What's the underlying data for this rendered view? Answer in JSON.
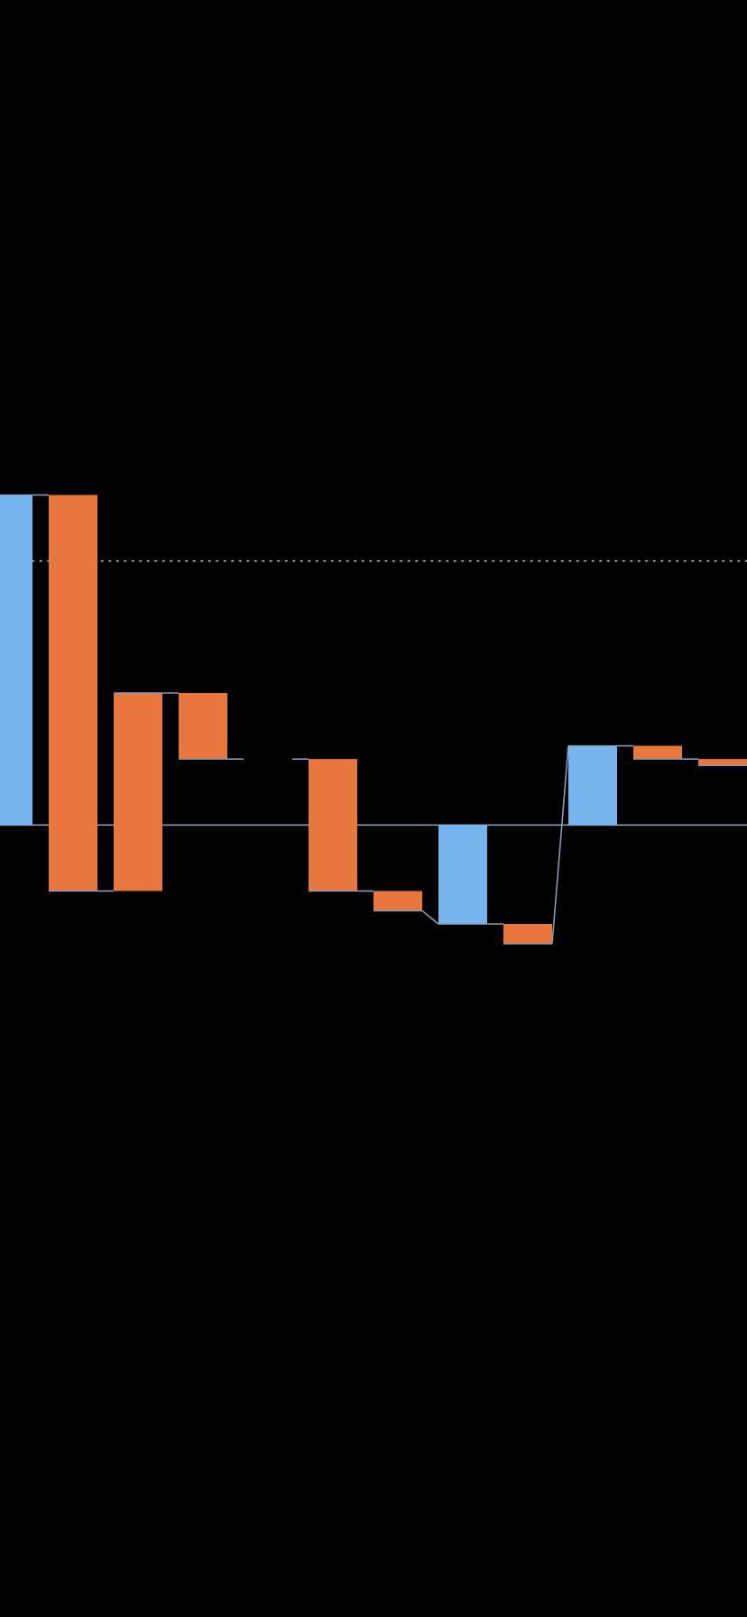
{
  "chart_data": {
    "type": "bar",
    "subtype": "waterfall",
    "categories": [
      "",
      "",
      "",
      "",
      "",
      "",
      "",
      "",
      "",
      "",
      "",
      ""
    ],
    "steps": [
      {
        "kind": "total",
        "value": 10.0,
        "start": 0.0,
        "end": 10.0
      },
      {
        "kind": "decrease",
        "value": -12.0,
        "start": 10.0,
        "end": -2.0
      },
      {
        "kind": "increase",
        "value": 6.0,
        "start": -2.0,
        "end": 4.0
      },
      {
        "kind": "decrease",
        "value": -2.0,
        "start": 4.0,
        "end": 2.0
      },
      {
        "kind": "blank",
        "value": 0.0,
        "start": 2.0,
        "end": 2.0
      },
      {
        "kind": "decrease",
        "value": -4.0,
        "start": 2.0,
        "end": -2.0
      },
      {
        "kind": "decrease",
        "value": -0.6,
        "start": -2.0,
        "end": -2.6
      },
      {
        "kind": "total",
        "value": -3.0,
        "start": 0.0,
        "end": -3.0
      },
      {
        "kind": "decrease",
        "value": -0.6,
        "start": -3.0,
        "end": -3.6
      },
      {
        "kind": "total",
        "value": 2.4,
        "start": 0.0,
        "end": 2.4
      },
      {
        "kind": "decrease",
        "value": -0.4,
        "start": 2.4,
        "end": 2.0
      },
      {
        "kind": "decrease",
        "value": -0.2,
        "start": 2.0,
        "end": 1.8
      }
    ],
    "reference_line": 8.0,
    "ylim": [
      -24.0,
      25.0
    ],
    "xlabel": "",
    "ylabel": "",
    "title": "",
    "grid": false,
    "legend": "none",
    "colors": {
      "background": "#000000",
      "increase_bar": "#E8773D",
      "decrease_bar": "#E8773D",
      "total_bar": "#76B4EE",
      "connector": "#8A9AB6",
      "zero_line": "#8A9AB6",
      "reference_line": "#B9C2CF"
    }
  }
}
